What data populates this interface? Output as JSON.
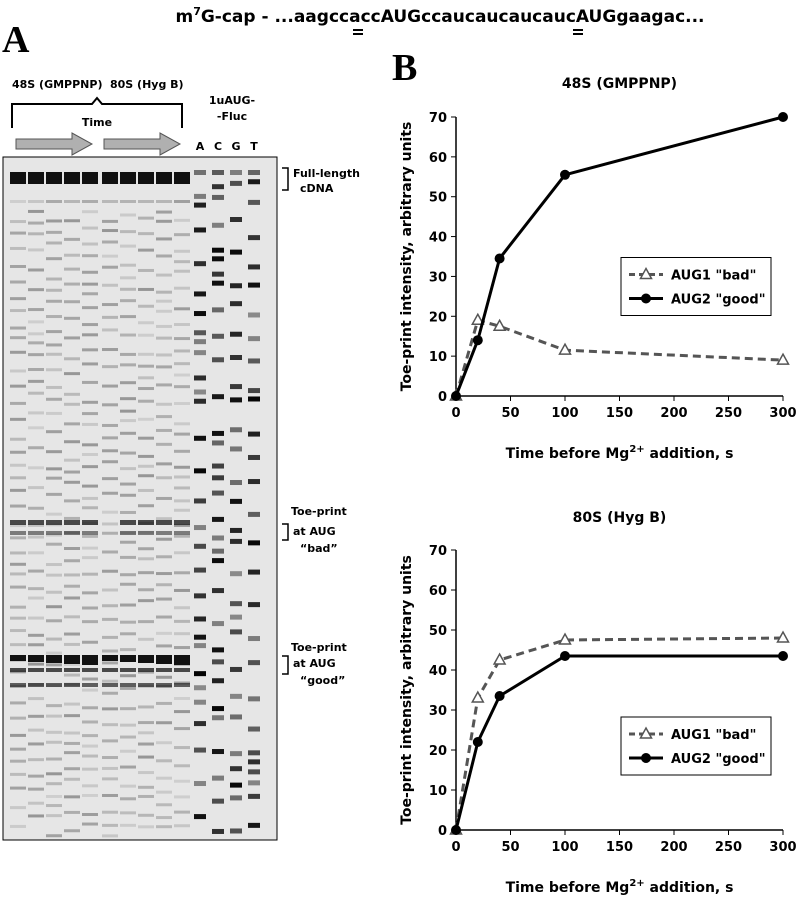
{
  "header": {
    "parts": [
      "m",
      "7",
      "G-cap - ...aagccacc",
      "AUG",
      "ccaucaucaucauc",
      "AUG",
      "gaagac..."
    ]
  },
  "panel_a": {
    "label": "A",
    "group_labels": [
      "48S (GMPPNP)",
      "80S (Hyg B)"
    ],
    "time_label": "Time",
    "ladder_label": [
      "1uAUG-",
      "-Fluc"
    ],
    "lanes": [
      "A",
      "C",
      "G",
      "T"
    ],
    "annotations": [
      [
        "Full-length",
        "cDNA"
      ],
      [
        "Toe-print",
        "at AUG",
        "“bad”"
      ],
      [
        "Toe-print",
        "at AUG",
        "“good”"
      ]
    ]
  },
  "panel_b": {
    "label": "B"
  },
  "chart_data": [
    {
      "type": "line",
      "title": "48S (GMPPNP)",
      "x": [
        0,
        20,
        40,
        100,
        300
      ],
      "series": [
        {
          "name": "AUG1 \"bad\"",
          "color": "#555555",
          "dash": true,
          "marker": "triangle",
          "values": [
            0,
            19,
            17.5,
            11.5,
            9
          ]
        },
        {
          "name": "AUG2 \"good\"",
          "color": "#000000",
          "dash": false,
          "marker": "circle",
          "values": [
            0,
            14,
            34.5,
            55.5,
            70
          ]
        }
      ],
      "xlim": [
        0,
        300
      ],
      "ylim": [
        0,
        70
      ],
      "xticks": [
        0,
        50,
        100,
        150,
        200,
        250,
        300
      ],
      "yticks": [
        0,
        10,
        20,
        30,
        40,
        50,
        60,
        70
      ],
      "x_label": [
        "Time before Mg",
        "2+",
        " addition, s"
      ],
      "y_label": "Toe-print intensity, arbitrary units",
      "legend": "center right"
    },
    {
      "type": "line",
      "title": "80S (Hyg B)",
      "x": [
        0,
        20,
        40,
        100,
        300
      ],
      "series": [
        {
          "name": "AUG1 \"bad\"",
          "color": "#555555",
          "dash": true,
          "marker": "triangle",
          "values": [
            0,
            33,
            42.5,
            47.5,
            48
          ]
        },
        {
          "name": "AUG2 \"good\"",
          "color": "#000000",
          "dash": false,
          "marker": "circle",
          "values": [
            0,
            22,
            33.5,
            43.5,
            43.5
          ]
        }
      ],
      "xlim": [
        0,
        300
      ],
      "ylim": [
        0,
        70
      ],
      "xticks": [
        0,
        50,
        100,
        150,
        200,
        250,
        300
      ],
      "yticks": [
        0,
        10,
        20,
        30,
        40,
        50,
        60,
        70
      ],
      "x_label": [
        "Time before Mg",
        "2+",
        " addition, s"
      ],
      "y_label": "Toe-print intensity, arbitrary units",
      "legend": "lower right"
    }
  ]
}
